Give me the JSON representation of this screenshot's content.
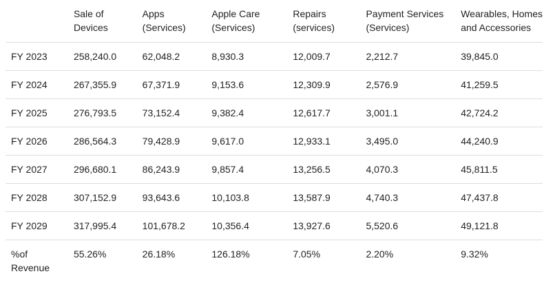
{
  "table": {
    "headers": [
      [
        "",
        ""
      ],
      [
        "Sale of",
        "Devices"
      ],
      [
        "Apps",
        "(Services)"
      ],
      [
        "Apple Care",
        "(Services)"
      ],
      [
        "Repairs",
        "(services)"
      ],
      [
        "Payment Services",
        "(Services)"
      ],
      [
        "Wearables, Homes",
        "and Accessories"
      ]
    ],
    "rows": [
      [
        "FY 2023",
        "258,240.0",
        "62,048.2",
        "8,930.3",
        "12,009.7",
        "2,212.7",
        "39,845.0"
      ],
      [
        "FY 2024",
        "267,355.9",
        "67,371.9",
        "9,153.6",
        "12,309.9",
        "2,576.9",
        "41,259.5"
      ],
      [
        "FY 2025",
        "276,793.5",
        "73,152.4",
        "9,382.4",
        "12,617.7",
        "3,001.1",
        "42,724.2"
      ],
      [
        "FY 2026",
        "286,564.3",
        "79,428.9",
        "9,617.0",
        "12,933.1",
        "3,495.0",
        "44,240.9"
      ],
      [
        "FY 2027",
        "296,680.1",
        "86,243.9",
        "9,857.4",
        "13,256.5",
        "4,070.3",
        "45,811.5"
      ],
      [
        "FY 2028",
        "307,152.9",
        "93,643.6",
        "10,103.8",
        "13,587.9",
        "4,740.3",
        "47,437.8"
      ],
      [
        "FY 2029",
        "317,995.4",
        "101,678.2",
        "10,356.4",
        "13,927.6",
        "5,520.6",
        "49,121.8"
      ]
    ],
    "revenue_row": {
      "label_line1": "%of",
      "label_line2": "Revenue",
      "values": [
        "55.26%",
        "26.18%",
        "126.18%",
        "7.05%",
        "2.20%",
        "9.32%"
      ]
    }
  }
}
